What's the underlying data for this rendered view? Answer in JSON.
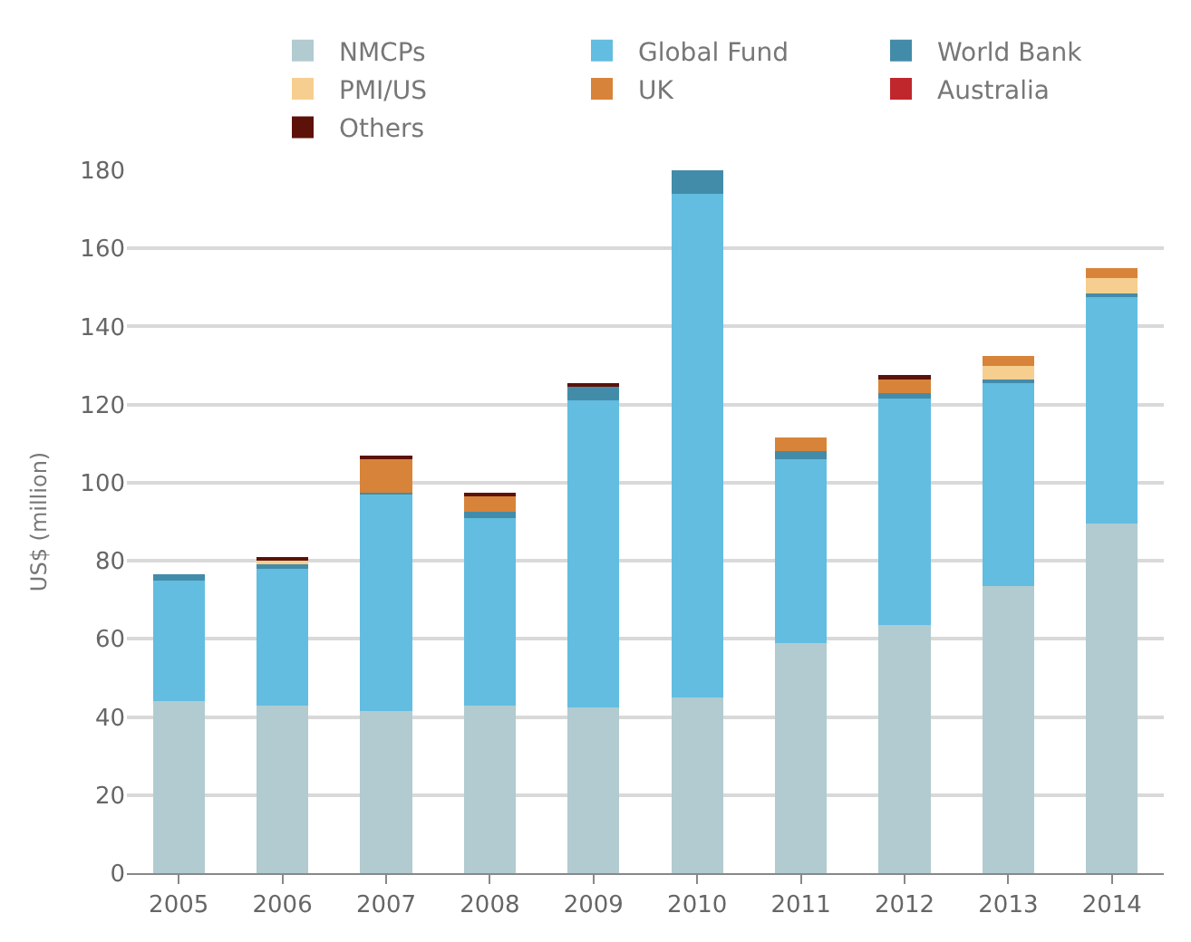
{
  "chart_data": {
    "type": "bar",
    "stacked": true,
    "ylabel": "US$ (million)",
    "categories": [
      "2005",
      "2006",
      "2007",
      "2008",
      "2009",
      "2010",
      "2011",
      "2012",
      "2013",
      "2014"
    ],
    "series": [
      {
        "name": "NMCPs",
        "color": "#b1cbd0",
        "values": [
          44,
          43,
          41.5,
          43,
          42.5,
          45,
          59,
          63.5,
          73.5,
          89.5
        ]
      },
      {
        "name": "Global Fund",
        "color": "#62bde0",
        "values": [
          31,
          35,
          55.5,
          48,
          78.5,
          129,
          47,
          58,
          52,
          58
        ]
      },
      {
        "name": "World Bank",
        "color": "#438ca9",
        "values": [
          1.5,
          1,
          0.5,
          1.5,
          3.5,
          6,
          2,
          1.5,
          1,
          1
        ]
      },
      {
        "name": "PMI/US",
        "color": "#f6ce8f",
        "values": [
          0,
          1,
          0,
          0,
          0,
          0,
          0,
          0,
          3.5,
          4
        ]
      },
      {
        "name": "UK",
        "color": "#d7843a",
        "values": [
          0,
          0,
          8.5,
          4,
          0,
          0,
          3.5,
          3.5,
          2.5,
          2.4
        ]
      },
      {
        "name": "Australia",
        "color": "#c0272d",
        "values": [
          0,
          0,
          0,
          0,
          0,
          0,
          0,
          0,
          0,
          0
        ]
      },
      {
        "name": "Others",
        "color": "#5c1209",
        "values": [
          0,
          1,
          1,
          1,
          1,
          0,
          0,
          1,
          0,
          0
        ]
      }
    ],
    "ylim": [
      0,
      180
    ],
    "yticks": [
      0,
      20,
      40,
      60,
      80,
      100,
      120,
      140,
      160,
      180
    ],
    "grid": "y",
    "legend": "top right"
  }
}
